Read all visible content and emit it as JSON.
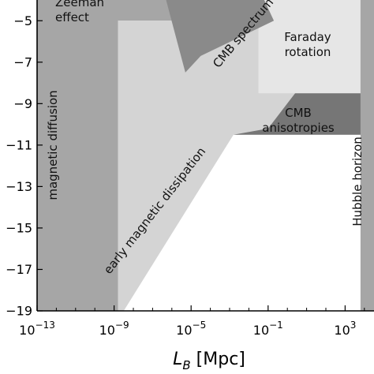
{
  "chart_data": {
    "type": "area",
    "title": "",
    "xlabel": "L_B [Mpc]",
    "ylabel": "",
    "x_scale": "log",
    "y_scale": "log",
    "xlim_log10": [
      -13,
      4.5
    ],
    "ylim_log10": [
      -19,
      -4
    ],
    "x_tick_labels": [
      {
        "base": "10",
        "exp": "−13",
        "log10": -13
      },
      {
        "base": "10",
        "exp": "−9",
        "log10": -9
      },
      {
        "base": "10",
        "exp": "−5",
        "log10": -5
      },
      {
        "base": "10",
        "exp": "−1",
        "log10": -1
      },
      {
        "base": "10",
        "exp": "3",
        "log10": 3
      }
    ],
    "y_tick_labels": [
      {
        "text": "−5",
        "log10": -5
      },
      {
        "text": "−7",
        "log10": -7
      },
      {
        "text": "−9",
        "log10": -9
      },
      {
        "text": "−11",
        "log10": -11
      },
      {
        "text": "−13",
        "log10": -13
      },
      {
        "text": "−15",
        "log10": -15
      },
      {
        "text": "−17",
        "log10": -17
      },
      {
        "text": "−19",
        "log10": -19
      }
    ],
    "regions": [
      {
        "name": "Zeeman effect",
        "color": "#a6a6a6",
        "label_lines": [
          "Zeeman",
          "effect"
        ],
        "polygon_log10": [
          [
            -13,
            -19
          ],
          [
            -13,
            -4
          ],
          [
            -3.5,
            -4
          ],
          [
            -3.5,
            -5.0
          ],
          [
            -13,
            -5.0
          ]
        ]
      },
      {
        "name": "magnetic diffusion",
        "color": "#a6a6a6",
        "label_lines": [
          "magnetic diffusion"
        ],
        "polygon_log10": [
          [
            -13,
            -19
          ],
          [
            -13,
            -4
          ],
          [
            -8.8,
            -4
          ],
          [
            -8.8,
            -19
          ]
        ]
      },
      {
        "name": "early magnetic dissipation",
        "color": "#d4d4d4",
        "label_lines": [
          "early magnetic dissipation"
        ],
        "polygon_log10": [
          [
            -8.8,
            -19
          ],
          [
            -8.8,
            -5.0
          ],
          [
            -1.1,
            -5.0
          ],
          [
            -1.1,
            -7.0
          ],
          [
            4.0,
            -7.0
          ],
          [
            4.0,
            -10.5
          ],
          [
            -2.8,
            -10.5
          ],
          [
            -8.5,
            -19
          ]
        ]
      },
      {
        "name": "Faraday rotation",
        "color": "#e6e6e6",
        "label_lines": [
          "Faraday",
          "rotation"
        ],
        "polygon_log10": [
          [
            -1.5,
            -8.5
          ],
          [
            -1.5,
            -4
          ],
          [
            2.5,
            -4
          ],
          [
            4.0,
            -4
          ],
          [
            4.0,
            -8.5
          ]
        ]
      },
      {
        "name": "CMB spectrum",
        "color": "#8a8a8a",
        "label_lines": [
          "CMB spectrum"
        ],
        "polygon_log10": [
          [
            -5.3,
            -7.5
          ],
          [
            -6.3,
            -4
          ],
          [
            -1.2,
            -4
          ],
          [
            -0.7,
            -5.0
          ],
          [
            -4.5,
            -6.7
          ]
        ]
      },
      {
        "name": "CMB anisotropies",
        "color": "#767676",
        "label_lines": [
          "CMB",
          "anisotropies"
        ],
        "polygon_log10": [
          [
            -2.8,
            -10.5
          ],
          [
            -1.0,
            -10.2
          ],
          [
            0.4,
            -8.5
          ],
          [
            4.0,
            -8.5
          ],
          [
            4.0,
            -10.5
          ]
        ]
      },
      {
        "name": "Hubble horizon",
        "color": "#a6a6a6",
        "label_lines": [
          "Hubble horizon"
        ],
        "polygon_log10": [
          [
            3.8,
            -19
          ],
          [
            3.8,
            -4
          ],
          [
            4.5,
            -4
          ],
          [
            4.5,
            -19
          ]
        ]
      }
    ]
  }
}
